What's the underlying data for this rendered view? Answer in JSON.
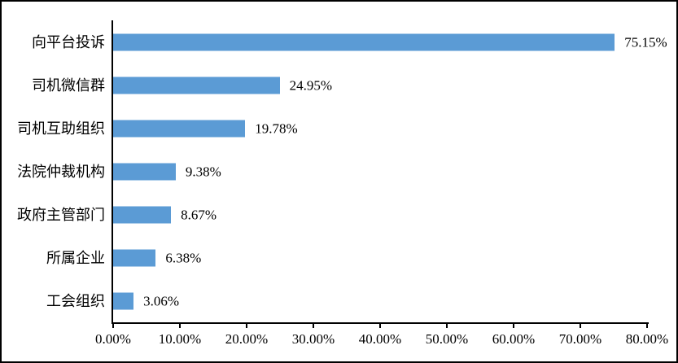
{
  "chart_data": {
    "type": "bar",
    "orientation": "horizontal",
    "title": "",
    "categories": [
      "向平台投诉",
      "司机微信群",
      "司机互助组织",
      "法院仲裁机构",
      "政府主管部门",
      "所属企业",
      "工会组织"
    ],
    "values": [
      75.15,
      24.95,
      19.78,
      9.38,
      8.67,
      6.38,
      3.06
    ],
    "data_labels": [
      "75.15%",
      "24.95%",
      "19.78%",
      "9.38%",
      "8.67%",
      "6.38%",
      "3.06%"
    ],
    "x_axis": {
      "min": 0,
      "max": 80,
      "step": 10,
      "ticks": [
        "0.00%",
        "10.00%",
        "20.00%",
        "30.00%",
        "40.00%",
        "50.00%",
        "60.00%",
        "70.00%",
        "80.00%"
      ]
    },
    "grid": false,
    "legend": "none",
    "bar_color": "#5B9BD5",
    "axis_color": "#000000",
    "background": "#FFFFFF"
  }
}
